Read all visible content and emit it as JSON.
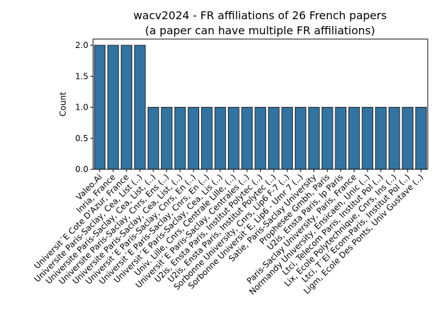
{
  "chart_data": {
    "type": "bar",
    "title": "wacv2024 - FR affiliations of 26 French papers",
    "subtitle": "(a paper can have multiple FR affiliations)",
    "y_label": "Count",
    "color": "#3274a1",
    "categories": [
      "Valeo.Ai",
      "Inria, France",
      "Universit´E Cote D'Azur, France",
      "Universite Paris-Saclay, Cea, List (..)",
      "Universite Paris-Saclay, Cea, List, (..)",
      "Universite Paris-Saclay, Cnrs, Ens (..)",
      "Universite Paris-Saclay, Cea, List, (..)",
      "Universit´E Paris-Saclay, Cnrs, En (..)",
      "Universit´E Paris-Saclay, Cnrs, En (..)",
      "Universit´E Paris-Saclay, Cea, Lis (..)",
      "Univ. Lille, Cnrs, Centrale Lille, (..)",
      "Universit´E Paris-Saclay, Centrales (..)",
      "U2is, Ensta Paris, Institut Polytec (..)",
      "U2is, Ensta Paris, Institut Polytec (..)",
      "Sorbonne University, Cnrs, Lip6 F-7 (..)",
      "Sorbonne Universit´E, Lip6 - Umr 7 (..)",
      "Satie, Paris-Saclay University",
      "Prophesee Gmbh, Paris",
      "U2is, Ensta Paris, Ip Paris",
      "Paris-Saclay University, Paris, France",
      "Normandy University, Ensicaen, Unic (..)",
      "Ltci, Telecom Paris, Institut Pol (..)",
      "Lix, Ecole Polytechnique, Cnrs, Ins (..)",
      "Ltci, T´El´Ecom-Paris, Institut Pol (..)",
      "Ligm, Ecole Des Ponts, Univ Gustave (..)"
    ],
    "values": [
      2,
      2,
      2,
      2,
      1,
      1,
      1,
      1,
      1,
      1,
      1,
      1,
      1,
      1,
      1,
      1,
      1,
      1,
      1,
      1,
      1,
      1,
      1,
      1,
      1
    ],
    "ylim": [
      0,
      2.1
    ],
    "yticks": [
      {
        "value": 0,
        "label": "0.0"
      },
      0.5,
      {
        "value": 1,
        "label": "1.0"
      },
      1.5,
      {
        "value": 2,
        "label": "2.0"
      }
    ]
  }
}
